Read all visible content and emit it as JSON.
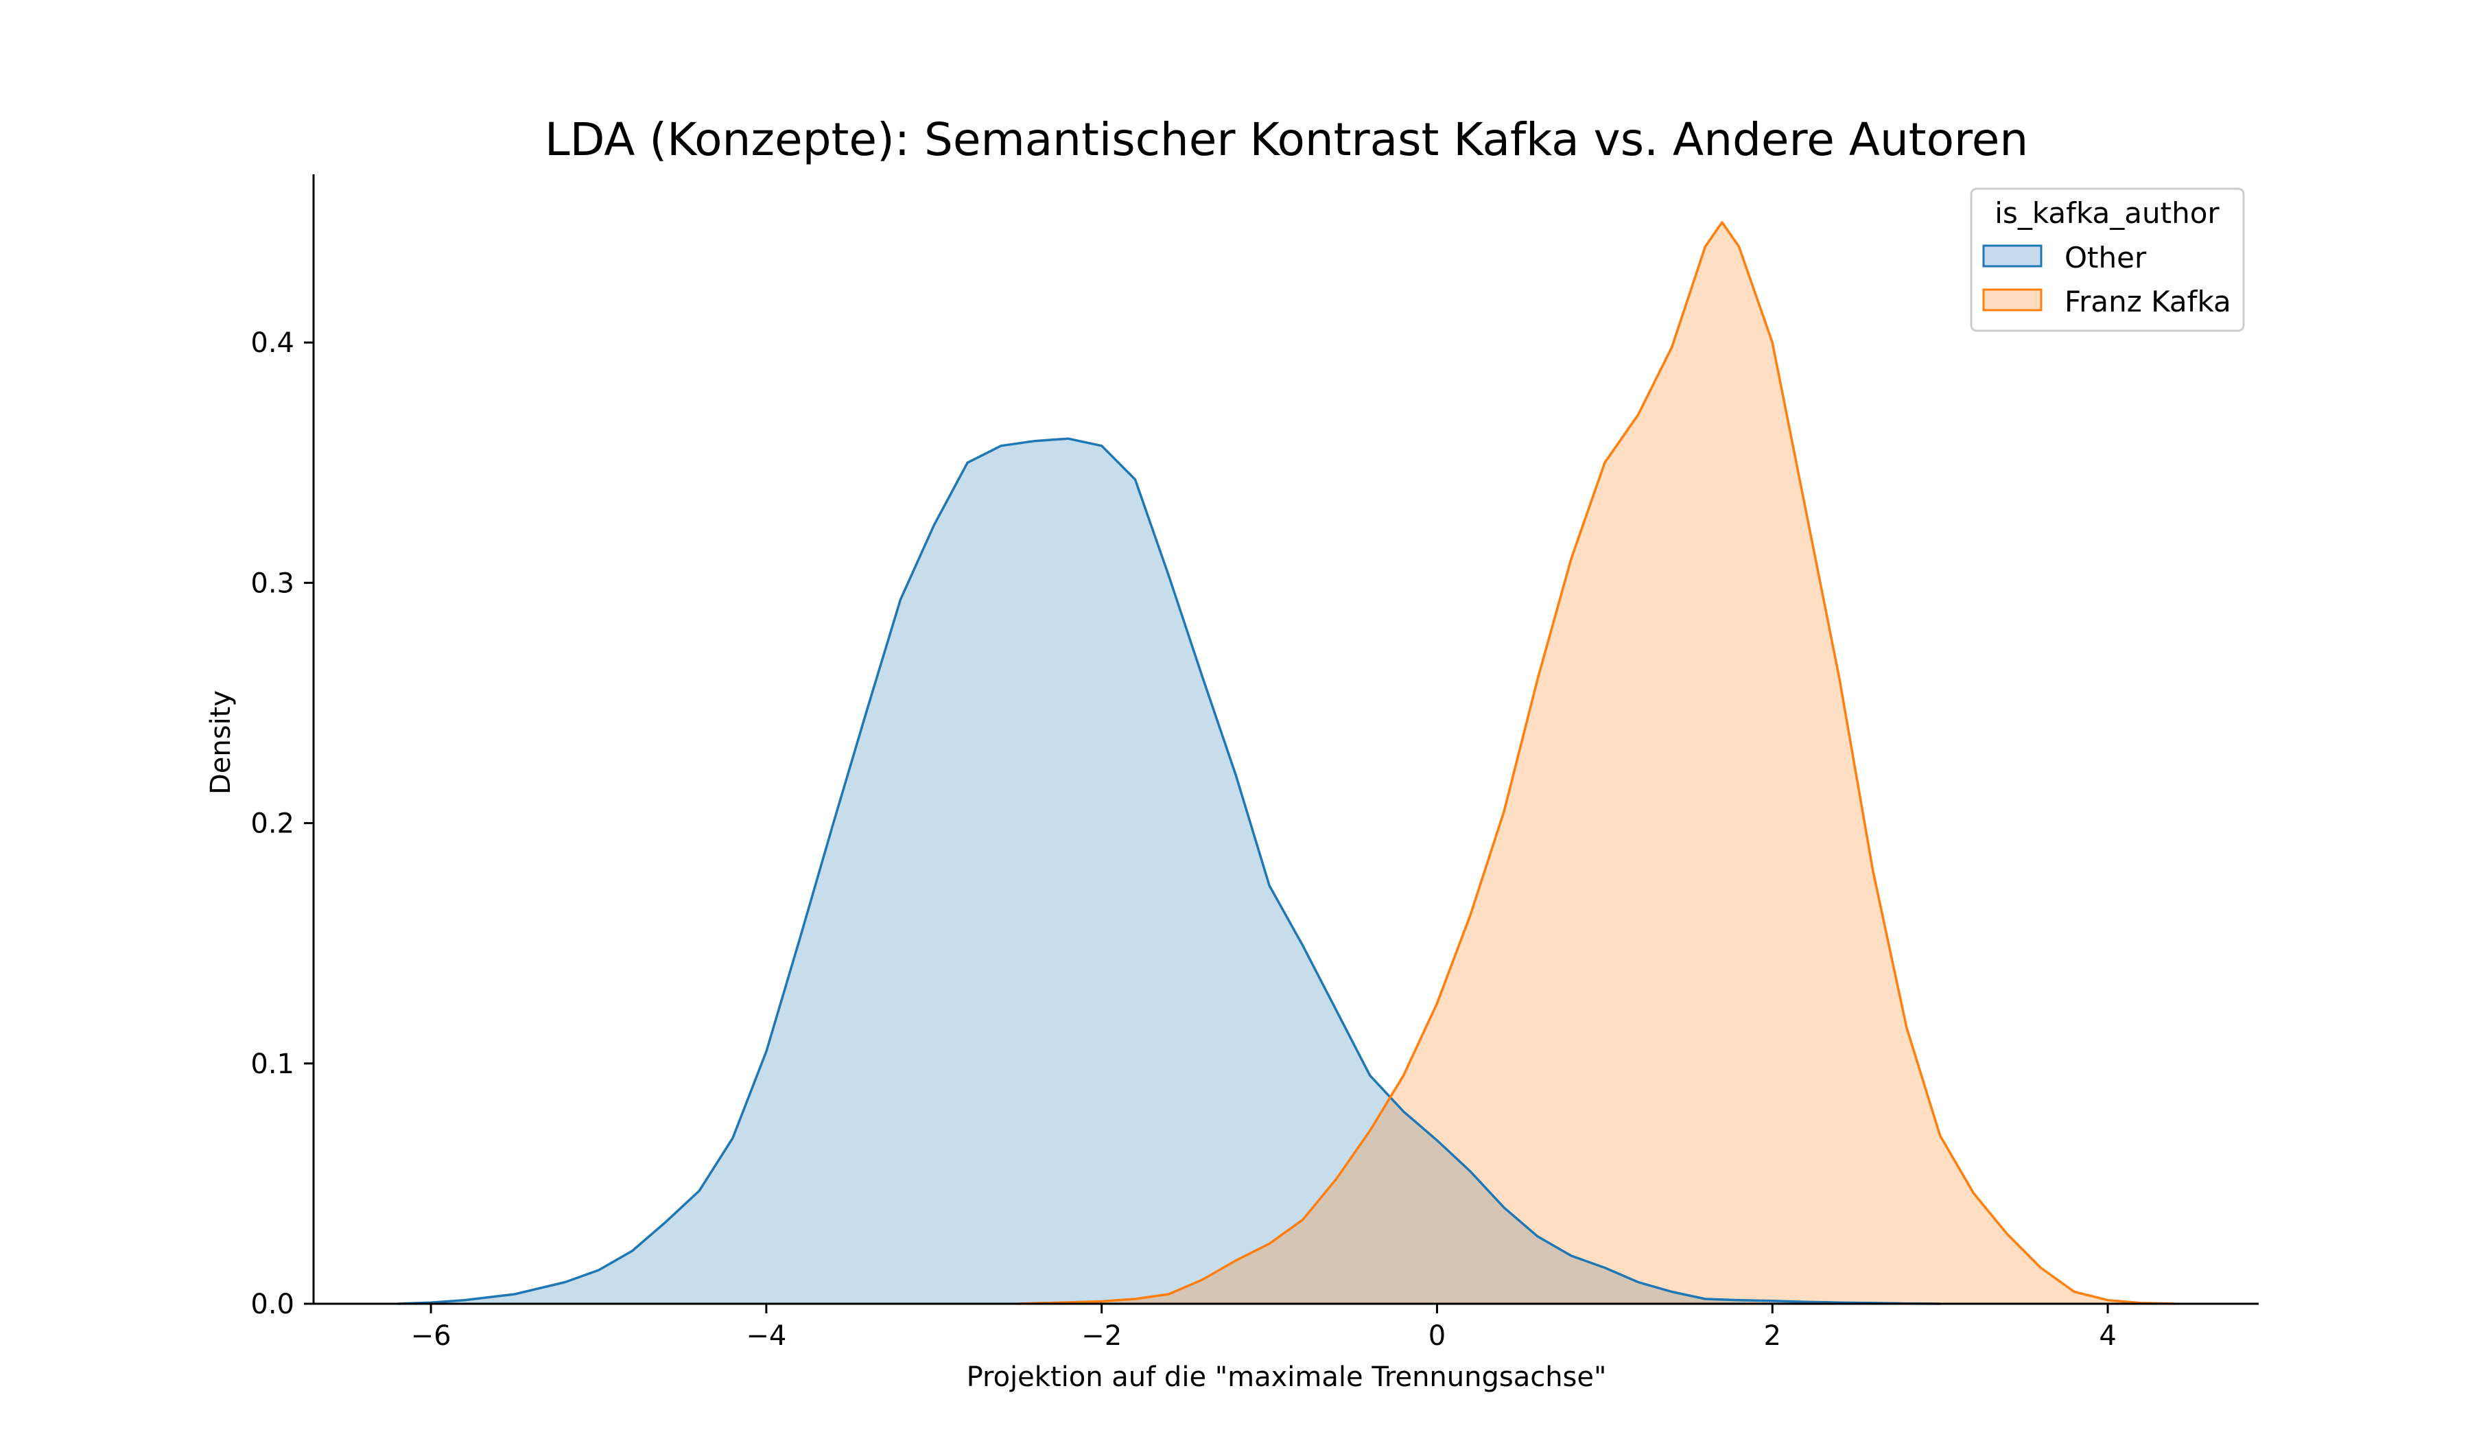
{
  "chart_data": {
    "type": "area",
    "title": "LDA (Konzepte): Semantischer Kontrast Kafka vs. Andere Autoren",
    "xlabel": "Projektion auf die \"maximale Trennungsachse\"",
    "ylabel": "Density",
    "xlim": [
      -6.7,
      4.9
    ],
    "ylim": [
      0,
      0.47
    ],
    "x_ticks": [
      -6,
      -4,
      -2,
      0,
      2,
      4
    ],
    "x_tick_labels": [
      "−6",
      "−4",
      "−2",
      "0",
      "2",
      "4"
    ],
    "y_ticks": [
      0.0,
      0.1,
      0.2,
      0.3,
      0.4
    ],
    "y_tick_labels": [
      "0.0",
      "0.1",
      "0.2",
      "0.3",
      "0.4"
    ],
    "grid": false,
    "legend": {
      "title": "is_kafka_author",
      "placement": "top-right",
      "entries": [
        "Other",
        "Franz Kafka"
      ]
    },
    "series": [
      {
        "name": "Other",
        "color": "#1f77b4",
        "fill": "#c6dbed",
        "x": [
          -6.2,
          -6.0,
          -5.8,
          -5.5,
          -5.2,
          -5.0,
          -4.8,
          -4.6,
          -4.4,
          -4.2,
          -4.0,
          -3.8,
          -3.6,
          -3.4,
          -3.2,
          -3.0,
          -2.8,
          -2.6,
          -2.4,
          -2.2,
          -2.0,
          -1.8,
          -1.6,
          -1.4,
          -1.2,
          -1.0,
          -0.8,
          -0.6,
          -0.4,
          -0.2,
          0.0,
          0.2,
          0.4,
          0.6,
          0.8,
          1.0,
          1.2,
          1.4,
          1.6,
          1.8,
          2.0,
          2.2,
          2.4,
          2.6,
          2.8,
          3.0
        ],
        "y": [
          0.0,
          0.0005,
          0.0015,
          0.004,
          0.009,
          0.014,
          0.022,
          0.034,
          0.047,
          0.069,
          0.105,
          0.152,
          0.2,
          0.247,
          0.293,
          0.324,
          0.35,
          0.357,
          0.359,
          0.36,
          0.357,
          0.343,
          0.303,
          0.261,
          0.22,
          0.174,
          0.149,
          0.122,
          0.095,
          0.08,
          0.068,
          0.055,
          0.04,
          0.028,
          0.02,
          0.015,
          0.009,
          0.005,
          0.002,
          0.0015,
          0.0012,
          0.0008,
          0.0005,
          0.0003,
          0.0001,
          0.0
        ]
      },
      {
        "name": "Franz Kafka",
        "color": "#ff7f0e",
        "fill": "#ffdcc0",
        "x": [
          -2.5,
          -2.0,
          -1.8,
          -1.6,
          -1.4,
          -1.2,
          -1.0,
          -0.8,
          -0.6,
          -0.4,
          -0.2,
          0.0,
          0.2,
          0.4,
          0.6,
          0.8,
          1.0,
          1.2,
          1.4,
          1.6,
          1.7,
          1.8,
          2.0,
          2.2,
          2.4,
          2.6,
          2.8,
          3.0,
          3.2,
          3.4,
          3.6,
          3.8,
          4.0,
          4.2,
          4.4
        ],
        "y": [
          0.0,
          0.001,
          0.002,
          0.004,
          0.01,
          0.018,
          0.025,
          0.035,
          0.052,
          0.072,
          0.095,
          0.125,
          0.162,
          0.205,
          0.26,
          0.31,
          0.35,
          0.37,
          0.398,
          0.44,
          0.45,
          0.44,
          0.4,
          0.33,
          0.26,
          0.18,
          0.115,
          0.07,
          0.046,
          0.029,
          0.015,
          0.005,
          0.0015,
          0.0003,
          0.0
        ]
      }
    ]
  }
}
